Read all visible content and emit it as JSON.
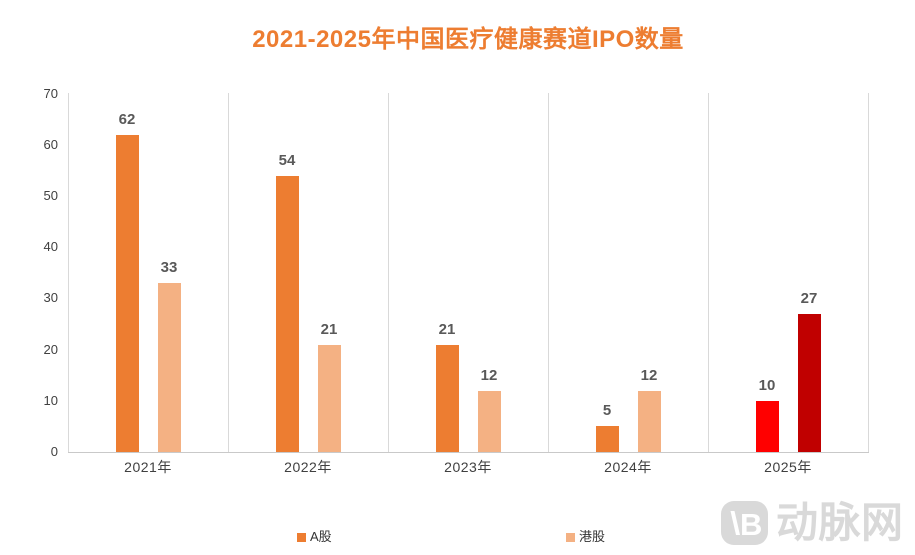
{
  "title": {
    "text": "2021-2025年中国医疗健康赛道IPO数量",
    "color": "#ED7D31"
  },
  "chart_data": {
    "type": "bar",
    "title": "2021-2025年中国医疗健康赛道IPO数量",
    "categories": [
      "2021年",
      "2022年",
      "2023年",
      "2024年",
      "2025年"
    ],
    "series": [
      {
        "name": "A股",
        "values": [
          62,
          54,
          21,
          5,
          10
        ],
        "bar_colors": [
          "#ED7D31",
          "#ED7D31",
          "#ED7D31",
          "#ED7D31",
          "#FF0000"
        ]
      },
      {
        "name": "港股",
        "values": [
          33,
          21,
          12,
          12,
          27
        ],
        "bar_colors": [
          "#F4B183",
          "#F4B183",
          "#F4B183",
          "#F4B183",
          "#C00000"
        ]
      }
    ],
    "xlabel": "",
    "ylabel": "",
    "ylim": [
      0,
      70
    ],
    "yticks": [
      0,
      10,
      20,
      30,
      40,
      50,
      60,
      70
    ],
    "grid": "vertical-category-separators-only",
    "data_labels": true,
    "legend_position": "bottom"
  },
  "legend": {
    "items": [
      {
        "label": "A股",
        "color": "#ED7D31"
      },
      {
        "label": "港股",
        "color": "#F4B183"
      }
    ]
  },
  "watermark": {
    "monogram": "B",
    "brand": "动脉网",
    "color": "#D9D9D9"
  },
  "style_colors": {
    "value_label": "#595959",
    "axis_label": "#404040",
    "separator_line": "#D9D9D9",
    "axis_line": "#C9C9C9",
    "background": "#FFFFFF"
  }
}
